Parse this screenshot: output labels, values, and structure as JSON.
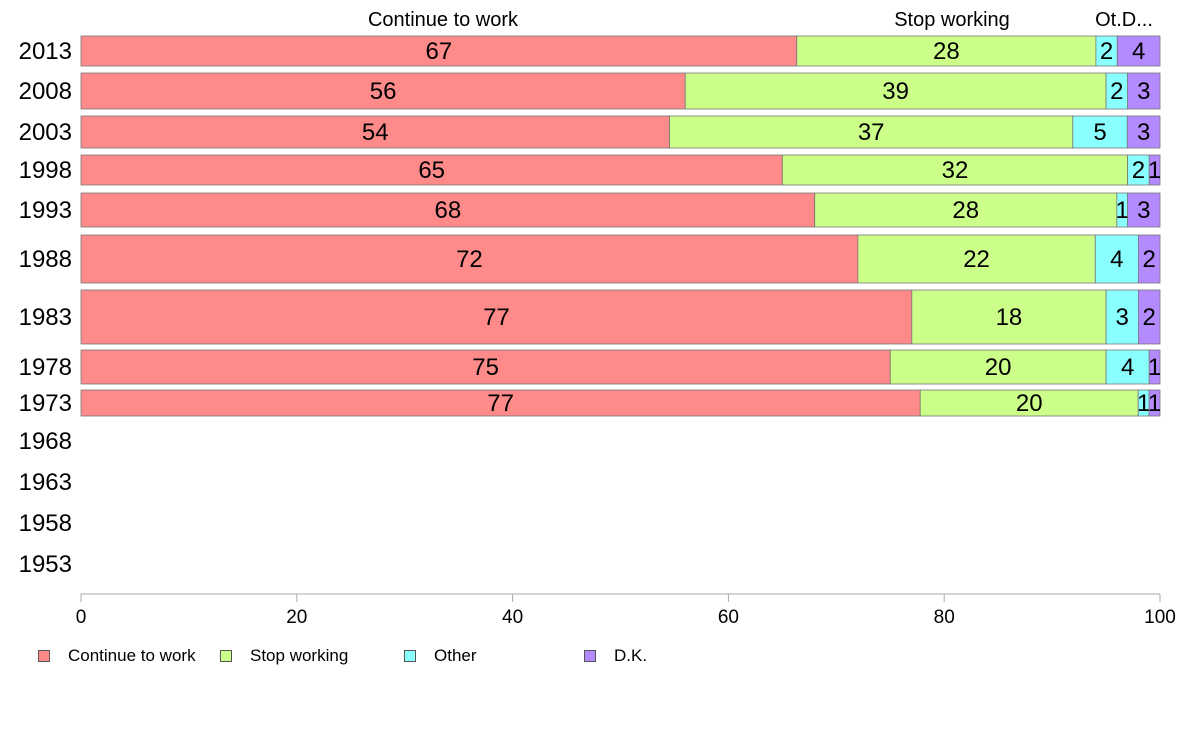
{
  "chart_data": {
    "type": "bar",
    "orientation": "horizontal",
    "stacked": true,
    "categories": [
      "2013",
      "2008",
      "2003",
      "1998",
      "1993",
      "1988",
      "1983",
      "1978",
      "1973",
      "1968",
      "1963",
      "1958",
      "1953"
    ],
    "column_headers": [
      "Continue to work",
      "Stop working",
      "Ot.D..."
    ],
    "series": [
      {
        "name": "Continue to work",
        "color": "#ff8a8a",
        "values": [
          67,
          56,
          54,
          65,
          68,
          72,
          77,
          75,
          77,
          null,
          null,
          null,
          null
        ],
        "labels": [
          "67",
          "56",
          "54",
          "65",
          "68",
          "72",
          "77",
          "75",
          "77",
          "",
          "",
          "",
          ""
        ]
      },
      {
        "name": "Stop working",
        "color": "#ccff8a",
        "values": [
          28,
          39,
          37,
          32,
          28,
          22,
          18,
          20,
          20,
          null,
          null,
          null,
          null
        ],
        "labels": [
          "28",
          "39",
          "37",
          "32",
          "28",
          "22",
          "18",
          "20",
          "20",
          "",
          "",
          "",
          ""
        ]
      },
      {
        "name": "Other",
        "color": "#8affff",
        "values": [
          2,
          2,
          5,
          2,
          1,
          4,
          3,
          4,
          1,
          null,
          null,
          null,
          null
        ],
        "labels": [
          "2",
          "2",
          "5",
          "2",
          "1",
          "4",
          "3",
          "4",
          "1",
          "",
          "",
          "",
          ""
        ]
      },
      {
        "name": "D.K.",
        "color": "#b38aff",
        "values": [
          4,
          3,
          3,
          1,
          3,
          2,
          2,
          1,
          1,
          null,
          null,
          null,
          null
        ],
        "labels": [
          "4",
          "3",
          "3",
          "1",
          "3",
          "2",
          "2",
          "1",
          "1",
          "",
          "",
          "",
          ""
        ]
      }
    ],
    "xlim": [
      0,
      100
    ],
    "xticks": [
      "0",
      "20",
      "40",
      "60",
      "80",
      "100"
    ],
    "grid": false,
    "legend_position": "bottom"
  }
}
